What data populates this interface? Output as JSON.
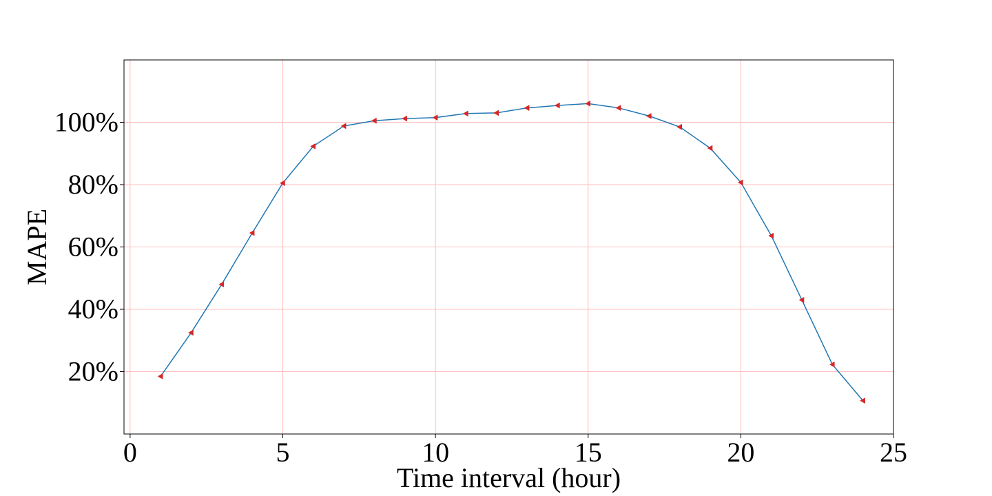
{
  "chart_data": {
    "type": "line",
    "title": "",
    "xlabel": "Time interval (hour)",
    "ylabel": "MAPE",
    "xlim": [
      -0.2,
      25.0
    ],
    "ylim": [
      0,
      120
    ],
    "xticks": [
      0,
      5,
      10,
      15,
      20,
      25
    ],
    "xtick_labels": [
      "0",
      "5",
      "10",
      "15",
      "20",
      "25"
    ],
    "yticks": [
      20,
      40,
      60,
      80,
      100
    ],
    "ytick_labels": [
      "20%",
      "40%",
      "60%",
      "80%",
      "100%"
    ],
    "grid": true,
    "grid_color": "#ffbcbc",
    "line_color": "#1f77b4",
    "marker_color": "#d62728",
    "marker": "triangle-left",
    "series": [
      {
        "x": [
          1,
          2,
          3,
          4,
          5,
          6,
          7,
          8,
          9,
          10,
          11,
          12,
          13,
          14,
          15,
          16,
          17,
          18,
          19,
          20,
          21,
          22,
          23,
          24
        ],
        "values": [
          18.5,
          32.5,
          48,
          64.5,
          80.5,
          92.3,
          98.8,
          100.5,
          101.2,
          101.5,
          102.8,
          103,
          104.6,
          105.4,
          106,
          104.6,
          102,
          98.5,
          91.7,
          80.7,
          63.6,
          43,
          22.3,
          10.7
        ]
      }
    ]
  }
}
